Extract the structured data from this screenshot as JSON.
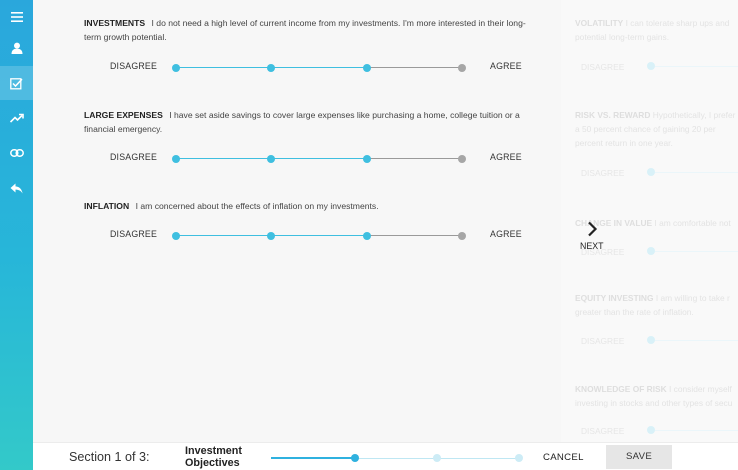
{
  "nav": {
    "items": [
      {
        "icon": "menu-icon"
      },
      {
        "icon": "user-icon"
      },
      {
        "icon": "checkbox-icon",
        "active": true
      },
      {
        "icon": "trend-up-icon"
      },
      {
        "icon": "link-icon"
      },
      {
        "icon": "reply-arrow-icon"
      }
    ]
  },
  "questions": [
    {
      "key": "INVESTMENTS",
      "text": "I do not need a high level of current income from my investments. I'm more interested in their long-term growth potential.",
      "left_label": "DISAGREE",
      "right_label": "AGREE",
      "level": 0.667
    },
    {
      "key": "LARGE EXPENSES",
      "text": "I have set aside savings to cover large expenses like purchasing a home, college tuition or a financial emergency.",
      "left_label": "DISAGREE",
      "right_label": "AGREE",
      "level": 0.667
    },
    {
      "key": "INFLATION",
      "text": "I am concerned about the effects of inflation on my investments.",
      "left_label": "DISAGREE",
      "right_label": "AGREE",
      "level": 0.667
    }
  ],
  "ghost": {
    "items": [
      {
        "key": "VOLATILITY",
        "line1": "I can tolerate sharp ups and",
        "line2": "potential long-term gains."
      },
      {
        "key": "RISK VS. REWARD",
        "line1": "Hypothetically, I prefer",
        "line2": "a 50 percent chance of gaining 20 per",
        "line3": "percent return in one year."
      },
      {
        "key": "CHANGE IN VALUE",
        "line1": "I am comfortable not"
      },
      {
        "key": "EQUITY INVESTING",
        "line1": "I am willing to take r",
        "line2": "greater than the rate of inflation."
      },
      {
        "key": "KNOWLEDGE OF RISK",
        "line1": "I consider myself",
        "line2": "investing in stocks and other types of secu"
      }
    ],
    "disagree": "DISAGREE"
  },
  "next": {
    "label": "NEXT"
  },
  "footer": {
    "section": "Section 1 of 3:",
    "section_title_line1": "Investment",
    "section_title_line2": "Objectives",
    "progress": 0.333,
    "cancel": "CANCEL",
    "save": "SAVE"
  },
  "colors": {
    "accent": "#2fb1df",
    "slider_fill": "#3fbfe0",
    "inactive_dot": "#a6a6a6",
    "nav_top": "#2aa7dc",
    "nav_bottom": "#33c9c9"
  }
}
